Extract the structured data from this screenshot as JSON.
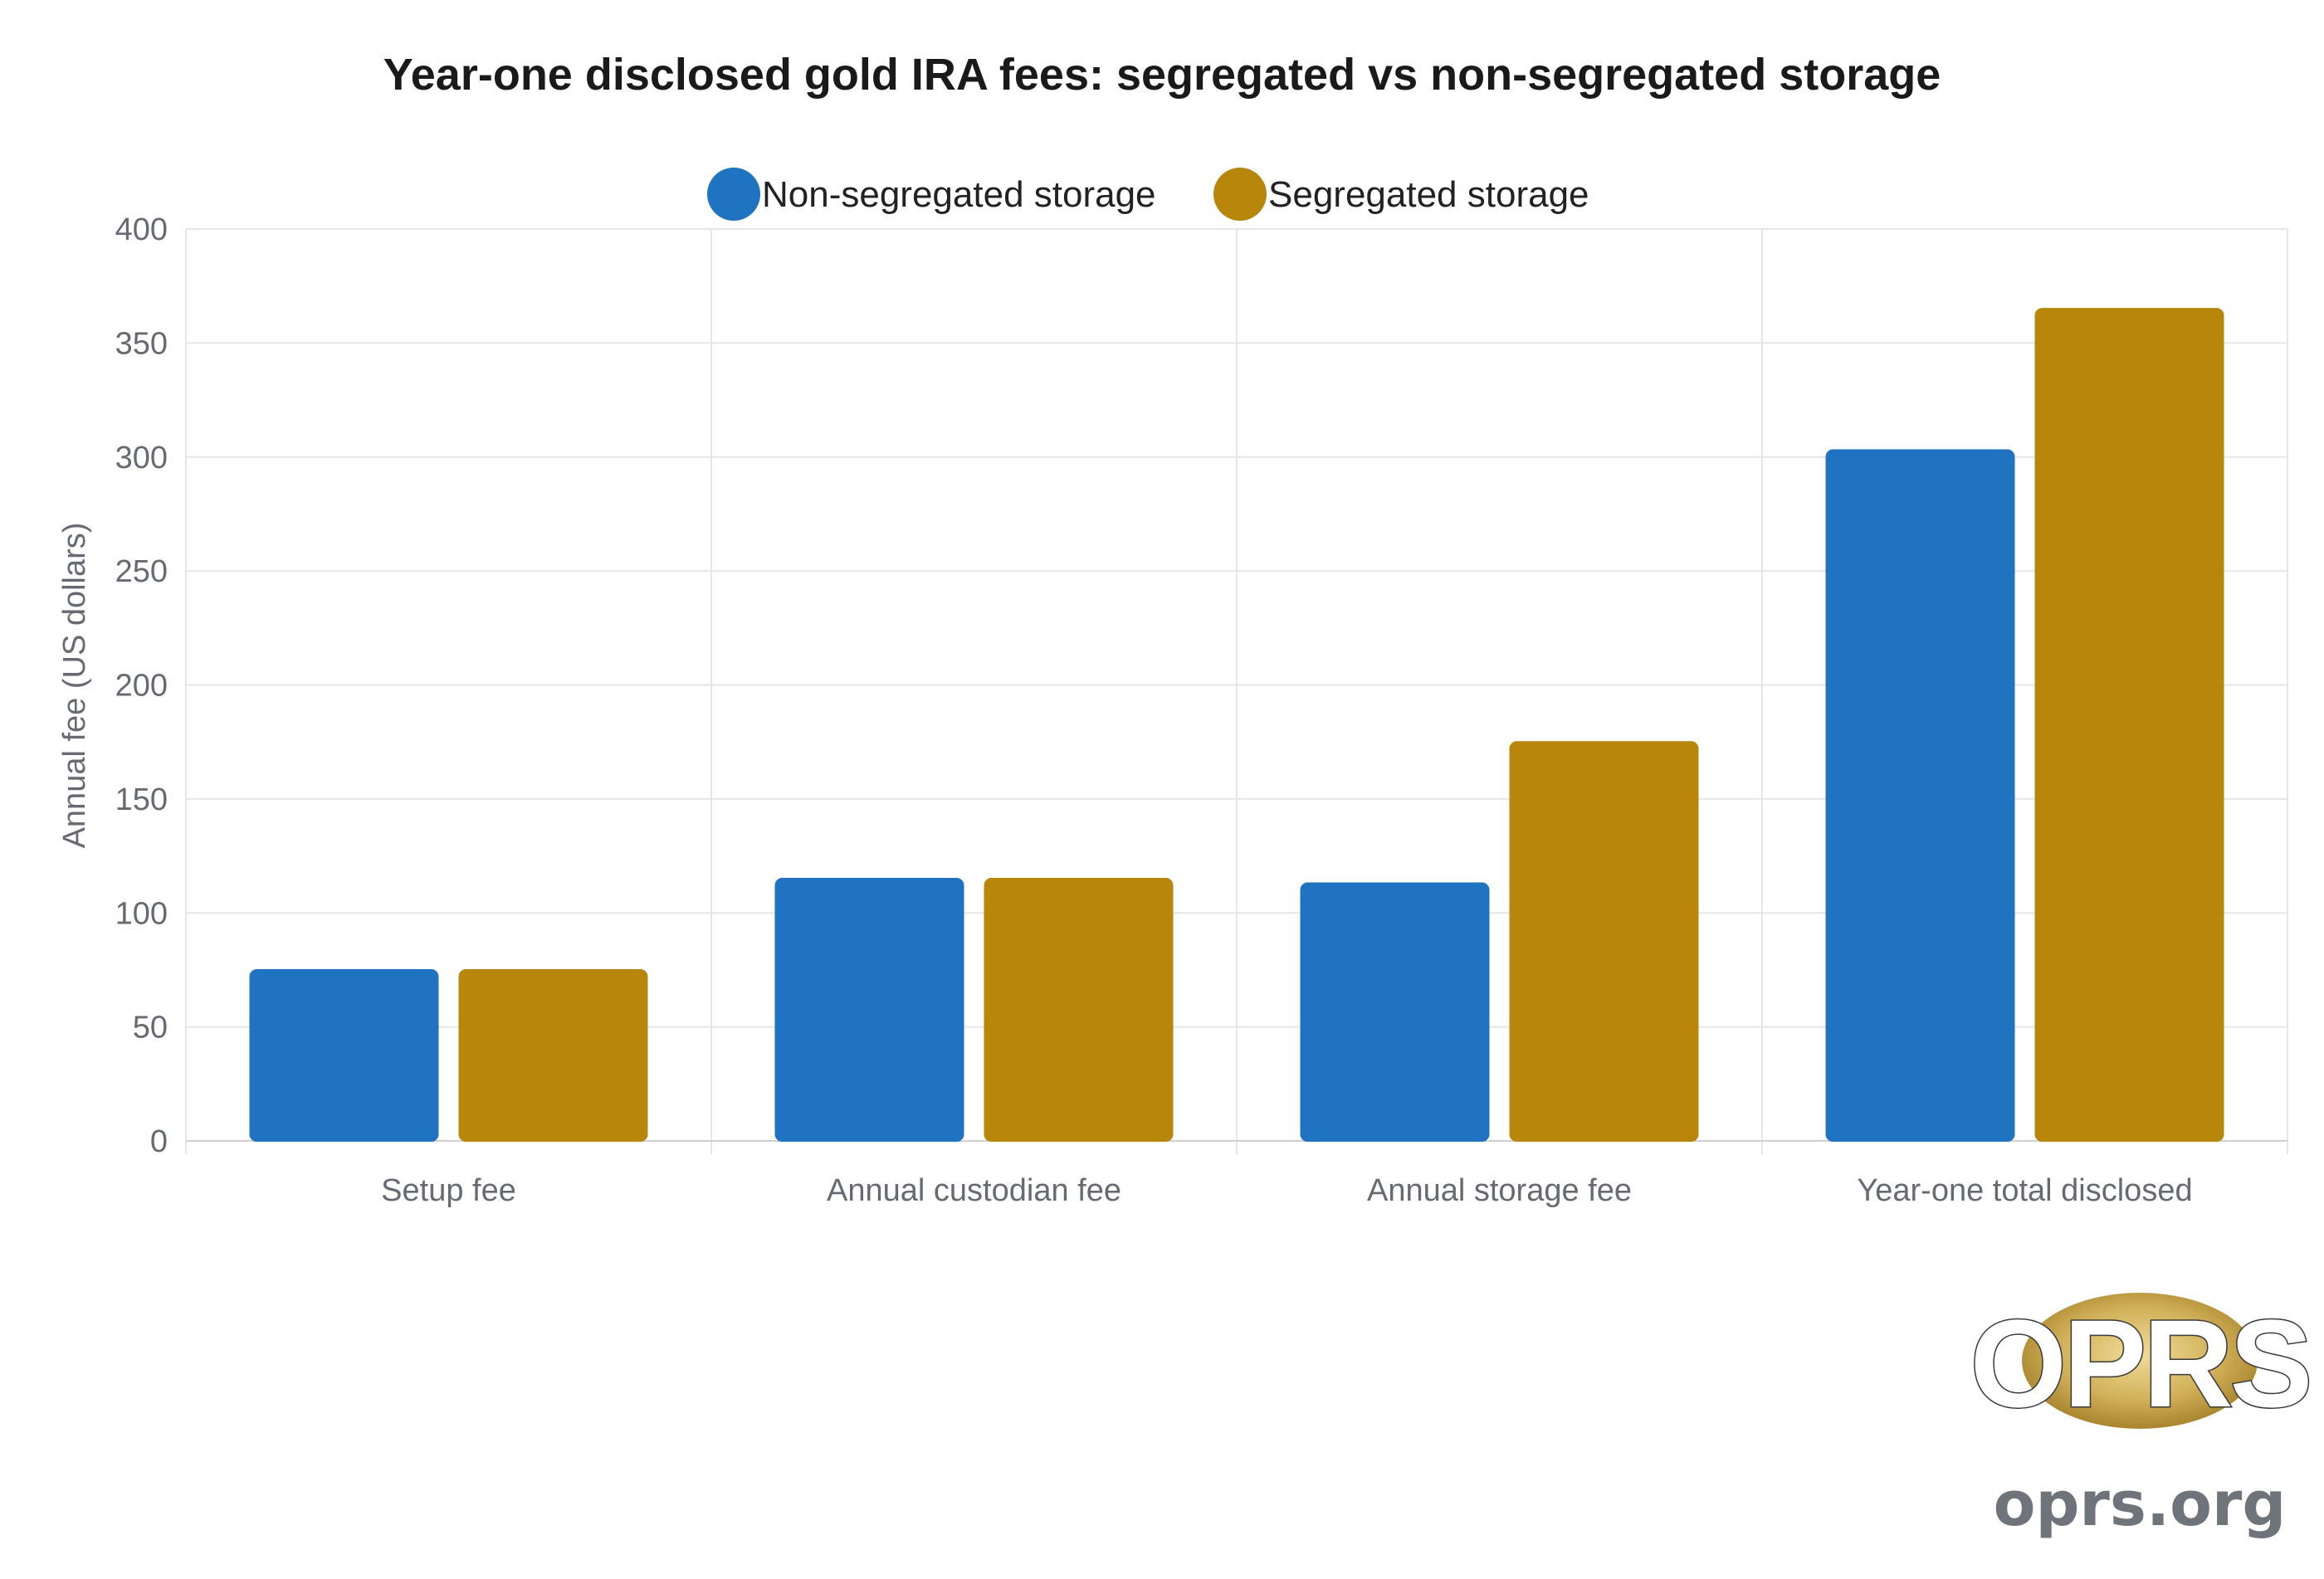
{
  "chart_data": {
    "type": "bar",
    "title": "Year-one disclosed gold IRA fees: segregated vs non-segregated storage",
    "xlabel": "",
    "ylabel": "Annual fee (US dollars)",
    "categories": [
      "Setup fee",
      "Annual custodian fee",
      "Annual storage fee",
      "Year-one total disclosed"
    ],
    "series": [
      {
        "name": "Non-segregated storage",
        "color": "#1f73c0",
        "values": [
          75,
          115,
          113,
          303
        ]
      },
      {
        "name": "Segregated storage",
        "color": "#b8860b",
        "values": [
          75,
          115,
          175,
          365
        ]
      }
    ],
    "ylim": [
      0,
      400
    ],
    "yticks": [
      0,
      50,
      100,
      150,
      200,
      250,
      300,
      350,
      400
    ],
    "grid": true,
    "legend_position": "top-center"
  },
  "logo": {
    "text": "OPRS",
    "site": "oprs.org"
  }
}
